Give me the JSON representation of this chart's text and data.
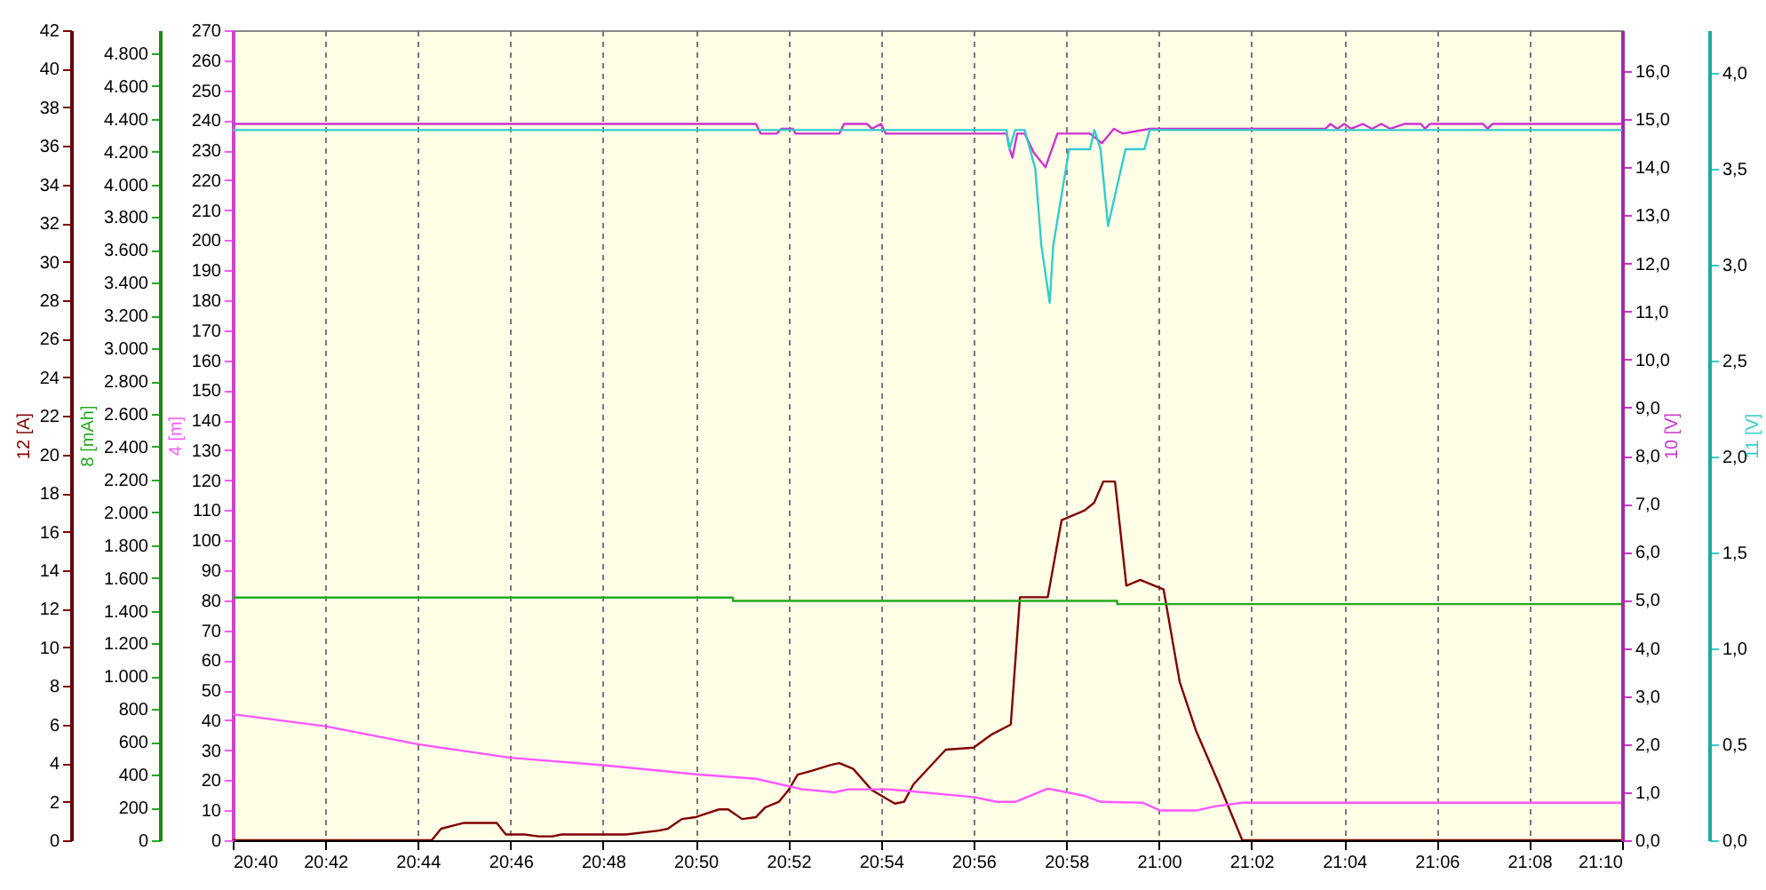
{
  "chart_data": [
    {
      "type": "line",
      "xlim": [
        20.6667,
        21.1667
      ],
      "xticks": [
        {
          "value": 20.6667,
          "label": "20:40"
        },
        {
          "value": 20.7,
          "label": "20:42"
        },
        {
          "value": 20.7333,
          "label": "20:44"
        },
        {
          "value": 20.7667,
          "label": "20:46"
        },
        {
          "value": 20.8,
          "label": "20:48"
        },
        {
          "value": 20.8333,
          "label": "20:50"
        },
        {
          "value": 20.8667,
          "label": "20:52"
        },
        {
          "value": 20.9,
          "label": "20:54"
        },
        {
          "value": 20.9333,
          "label": "20:56"
        },
        {
          "value": 20.9667,
          "label": "20:58"
        },
        {
          "value": 21,
          "label": "21:00"
        },
        {
          "value": 21.0333,
          "label": "21:02"
        },
        {
          "value": 21.0667,
          "label": "21:04"
        },
        {
          "value": 21.1,
          "label": "21:06"
        },
        {
          "value": 21.1333,
          "label": "21:08"
        },
        {
          "value": 21.1667,
          "label": "21:10"
        }
      ],
      "ylabel": "12 [A]",
      "ylim": [
        0,
        42
      ],
      "yticks": [
        0,
        2,
        4,
        6,
        8,
        10,
        12,
        14,
        16,
        18,
        20,
        22,
        24,
        26,
        28,
        30,
        32,
        34,
        36,
        38,
        40,
        42
      ],
      "y2label": "8 [mAh]",
      "y2lim": [
        0,
        4940
      ],
      "y2ticks": [
        0,
        200,
        400,
        600,
        800,
        {
          "value": 1000,
          "label": "1.000"
        },
        {
          "value": 1200,
          "label": "1.200"
        },
        {
          "value": 1400,
          "label": "1.400"
        },
        {
          "value": 1600,
          "label": "1.600"
        },
        {
          "value": 1800,
          "label": "1.800"
        },
        {
          "value": 2000,
          "label": "2.000"
        },
        {
          "value": 2200,
          "label": "2.200"
        },
        {
          "value": 2400,
          "label": "2.400"
        },
        {
          "value": 2600,
          "label": "2.600"
        },
        {
          "value": 2800,
          "label": "2.800"
        },
        {
          "value": 3000,
          "label": "3.000"
        },
        {
          "value": 3200,
          "label": "3.200"
        },
        {
          "value": 3400,
          "label": "3.400"
        },
        {
          "value": 3600,
          "label": "3.600"
        },
        {
          "value": 3800,
          "label": "3.800"
        },
        {
          "value": 4000,
          "label": "4.000"
        },
        {
          "value": 4200,
          "label": "4.200"
        },
        {
          "value": 4400,
          "label": "4.400"
        },
        {
          "value": 4600,
          "label": "4.600"
        },
        {
          "value": 4800,
          "label": "4.800"
        }
      ],
      "y3label": "4 [m]",
      "y3lim": [
        0,
        270
      ],
      "y3ticks": [
        0,
        10,
        20,
        30,
        40,
        50,
        60,
        70,
        80,
        90,
        100,
        110,
        120,
        130,
        140,
        150,
        160,
        170,
        180,
        190,
        200,
        210,
        220,
        230,
        240,
        250,
        260,
        270
      ],
      "grid": "x",
      "series": [
        {
          "color": "#800000",
          "x": [
            20.6667,
            20.7383,
            20.7417,
            20.75,
            20.7617,
            20.765,
            20.7717,
            20.7767,
            20.7817,
            20.785,
            20.8083,
            20.82,
            20.8233,
            20.8283,
            20.8333,
            20.8417,
            20.845,
            20.85,
            20.855,
            20.8583,
            20.8633,
            20.8667,
            20.87,
            20.875,
            20.8817,
            20.885,
            20.89,
            20.8967,
            20.905,
            20.9083,
            20.9117,
            20.9175,
            20.9233,
            20.9333,
            20.94,
            20.9467,
            20.95,
            20.96,
            20.965,
            20.9733,
            20.9767,
            20.98,
            20.9842,
            20.9883,
            20.9933,
            21.0017,
            21.0075,
            21.0133,
            21.0217,
            21.03,
            21.1667
          ],
          "values": [
            0,
            0,
            0.6,
            0.9,
            0.9,
            0.3,
            0.3,
            0.2,
            0.2,
            0.3,
            0.3,
            0.5,
            0.6,
            1.1,
            1.2,
            1.6,
            1.6,
            1.1,
            1.2,
            1.7,
            2.0,
            2.6,
            3.4,
            3.6,
            3.9,
            4.0,
            3.7,
            2.6,
            1.9,
            2.0,
            2.9,
            3.8,
            4.7,
            4.8,
            5.5,
            6.0,
            12.6,
            12.6,
            16.6,
            17.1,
            17.5,
            18.6,
            18.6,
            13.2,
            13.5,
            13.0,
            8.2,
            5.7,
            2.9,
            0,
            0
          ]
        },
        {
          "color": "#22aa22",
          "axis": "y2",
          "x": [
            20.6667,
            20.8467,
            20.8467,
            20.985,
            20.985,
            21.1667
          ],
          "values": [
            1480,
            1480,
            1460,
            1460,
            1440,
            1440
          ]
        },
        {
          "color": "#ff55ff",
          "axis": "y3",
          "x": [
            20.6667,
            20.7,
            20.7333,
            20.7667,
            20.8,
            20.8333,
            20.855,
            20.8717,
            20.8833,
            20.8883,
            20.9025,
            20.9333,
            20.9417,
            20.9483,
            20.96,
            20.9733,
            20.9792,
            20.9942,
            21.0005,
            21.0133,
            21.02,
            21.03,
            21.1667
          ],
          "values": [
            42,
            38,
            32,
            27.5,
            25,
            22,
            20.5,
            17,
            16,
            17,
            17,
            14.4,
            12.8,
            12.8,
            17.2,
            14.8,
            12.8,
            12.5,
            9.9,
            9.9,
            11.3,
            12.5,
            12.5
          ]
        }
      ]
    },
    {
      "type": "line",
      "xlim": [
        20.6667,
        21.1667
      ],
      "tick_labels": "y",
      "ylabel": "10 [V]",
      "ylim": [
        0,
        16.85
      ],
      "yticks": [
        {
          "value": 0,
          "label": "0,0"
        },
        {
          "value": 1,
          "label": "1,0"
        },
        {
          "value": 2,
          "label": "2,0"
        },
        {
          "value": 3,
          "label": "3,0"
        },
        {
          "value": 4,
          "label": "4,0"
        },
        {
          "value": 5,
          "label": "5,0"
        },
        {
          "value": 6,
          "label": "6,0"
        },
        {
          "value": 7,
          "label": "7,0"
        },
        {
          "value": 8,
          "label": "8,0"
        },
        {
          "value": 9,
          "label": "9,0"
        },
        {
          "value": 10,
          "label": "10,0"
        },
        {
          "value": 11,
          "label": "11,0"
        },
        {
          "value": 12,
          "label": "12,0"
        },
        {
          "value": 13,
          "label": "13,0"
        },
        {
          "value": 14,
          "label": "14,0"
        },
        {
          "value": 15,
          "label": "15,0"
        },
        {
          "value": 16,
          "label": "16,0"
        }
      ],
      "y2label": "11 [V]",
      "y2lim": [
        0,
        4.22
      ],
      "y2ticks": [
        {
          "value": 0,
          "label": "0,0"
        },
        {
          "value": 0.5,
          "label": "0,5"
        },
        {
          "value": 1,
          "label": "1,0"
        },
        {
          "value": 1.5,
          "label": "1,5"
        },
        {
          "value": 2,
          "label": "2,0"
        },
        {
          "value": 2.5,
          "label": "2,5"
        },
        {
          "value": 3,
          "label": "3,0"
        },
        {
          "value": 3.5,
          "label": "3,5"
        },
        {
          "value": 4,
          "label": "4,0"
        }
      ],
      "series": [
        {
          "color": "#cc33cc",
          "x": [
            20.6667,
            20.855,
            20.8567,
            20.8625,
            20.8642,
            20.8667,
            20.8683,
            20.8692,
            20.885,
            20.8867,
            20.895,
            20.8967,
            20.9,
            20.9017,
            20.9452,
            20.9462,
            20.9473,
            20.949,
            20.9517,
            20.955,
            20.9592,
            20.9635,
            20.9752,
            20.9795,
            20.9838,
            20.987,
            20.9967,
            21.0073,
            21.06,
            21.0617,
            21.0642,
            21.0667,
            21.0692,
            21.0733,
            21.0767,
            21.08,
            21.0833,
            21.0883,
            21.0943,
            21.0958,
            21.0975,
            21.1167,
            21.1183,
            21.12,
            21.1667
          ],
          "values": [
            14.9,
            14.9,
            14.7,
            14.7,
            14.8,
            14.8,
            14.8,
            14.7,
            14.7,
            14.9,
            14.9,
            14.8,
            14.9,
            14.7,
            14.7,
            14.4,
            14.2,
            14.7,
            14.7,
            14.3,
            14.0,
            14.7,
            14.7,
            14.5,
            14.8,
            14.7,
            14.8,
            14.8,
            14.8,
            14.9,
            14.8,
            14.9,
            14.8,
            14.9,
            14.8,
            14.9,
            14.8,
            14.9,
            14.9,
            14.8,
            14.9,
            14.9,
            14.8,
            14.9,
            14.9
          ]
        },
        {
          "color": "#33cccc",
          "axis": "y2",
          "x": [
            20.6667,
            20.9452,
            20.9462,
            20.9483,
            20.9517,
            20.9555,
            20.9577,
            20.9607,
            20.962,
            20.9677,
            20.9752,
            20.9768,
            20.979,
            20.9817,
            20.988,
            20.9948,
            20.9967,
            21.1667
          ],
          "values": [
            3.7,
            3.7,
            3.6,
            3.7,
            3.7,
            3.5,
            3.1,
            2.8,
            3.1,
            3.6,
            3.6,
            3.7,
            3.6,
            3.2,
            3.6,
            3.6,
            3.7,
            3.7
          ]
        }
      ]
    }
  ]
}
